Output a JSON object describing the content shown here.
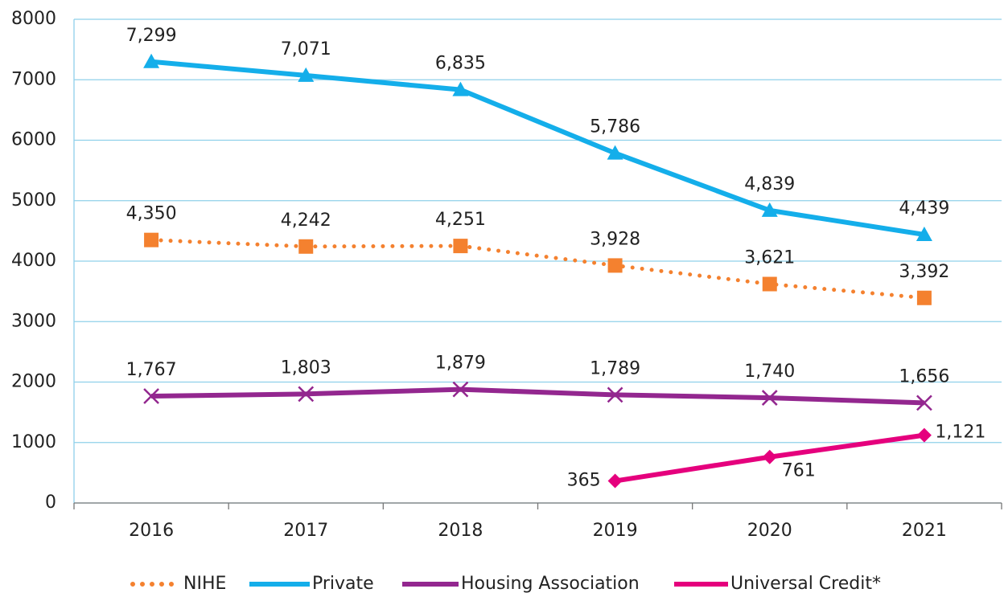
{
  "chart_data": {
    "type": "line",
    "categories": [
      "2016",
      "2017",
      "2018",
      "2019",
      "2020",
      "2021"
    ],
    "ylim": [
      0,
      8000
    ],
    "yticks": [
      0,
      1000,
      2000,
      3000,
      4000,
      5000,
      6000,
      7000,
      8000
    ],
    "grid": true,
    "legend": "bottom",
    "series": [
      {
        "name": "NIHE",
        "color": "#f4812f",
        "style": "dotted",
        "marker": "square",
        "values": [
          4350,
          4242,
          4251,
          3928,
          3621,
          3392
        ],
        "value_labels": [
          "4,350",
          "4,242",
          "4,251",
          "3,928",
          "3,621",
          "3,392"
        ]
      },
      {
        "name": "Private",
        "color": "#14aeea",
        "style": "solid",
        "marker": "triangle",
        "values": [
          7299,
          7071,
          6835,
          5786,
          4839,
          4439
        ],
        "value_labels": [
          "7,299",
          "7,071",
          "6,835",
          "5,786",
          "4,839",
          "4,439"
        ]
      },
      {
        "name": "Housing Association",
        "color": "#93278f",
        "style": "solid",
        "marker": "x",
        "values": [
          1767,
          1803,
          1879,
          1789,
          1740,
          1656
        ],
        "value_labels": [
          "1,767",
          "1,803",
          "1,879",
          "1,789",
          "1,740",
          "1,656"
        ]
      },
      {
        "name": "Universal Credit*",
        "color": "#e5007d",
        "style": "solid",
        "marker": "diamond",
        "values": [
          null,
          null,
          null,
          365,
          761,
          1121
        ],
        "value_labels": [
          null,
          null,
          null,
          "365",
          "761",
          "1,121"
        ]
      }
    ]
  }
}
